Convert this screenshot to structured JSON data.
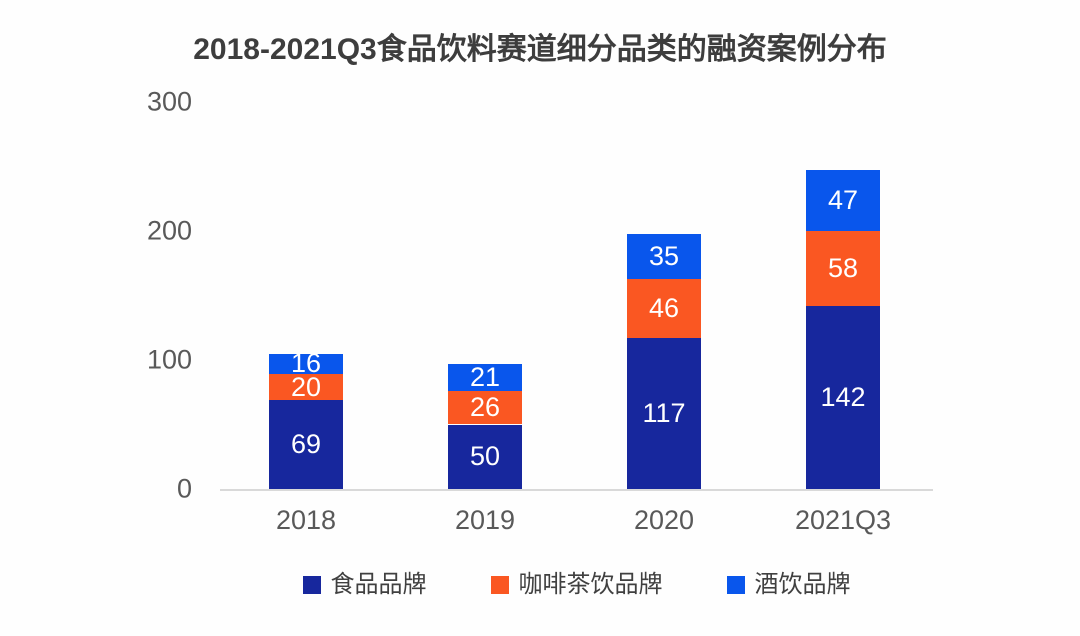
{
  "title": "2018-2021Q3食品饮料赛道细分品类的融资案例分布",
  "colors": {
    "food_brand": "#17279d",
    "coffee_tea_brand": "#fa5722",
    "alcohol_brand": "#0956ec",
    "title_text": "#3d3d3d",
    "axis_text": "#595959",
    "axis_line": "#d9d9d9",
    "value_label_text": "#ffffff",
    "background": "#fefefe"
  },
  "chart_data": {
    "type": "bar",
    "stacked": true,
    "title": "2018-2021Q3食品饮料赛道细分品类的融资案例分布",
    "categories": [
      "2018",
      "2019",
      "2020",
      "2021Q3"
    ],
    "series": [
      {
        "name": "食品品牌",
        "color": "#17279d",
        "values": [
          69,
          50,
          117,
          142
        ]
      },
      {
        "name": "咖啡茶饮品牌",
        "color": "#fa5722",
        "values": [
          20,
          26,
          46,
          58
        ]
      },
      {
        "name": "酒饮品牌",
        "color": "#0956ec",
        "values": [
          16,
          21,
          35,
          47
        ]
      }
    ],
    "totals": [
      105,
      97,
      198,
      247
    ],
    "xlabel": "",
    "ylabel": "",
    "yticks": [
      0,
      100,
      200,
      300
    ],
    "ylim": [
      0,
      300
    ],
    "grid": false,
    "legend_position": "bottom",
    "value_labels": "inside-white"
  }
}
